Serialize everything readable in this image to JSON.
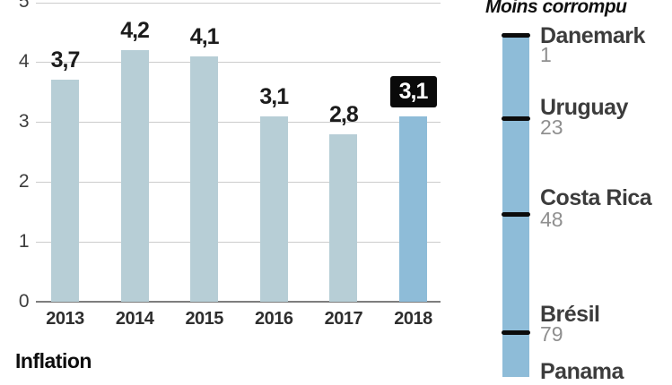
{
  "colors": {
    "bar": "#b7ced6",
    "bar_highlight": "#8ebcd8",
    "highlight_box": "#0a0a0a",
    "grid": "#cccccc",
    "axis_line": "#7e7e7e",
    "scale_bar": "#8ebcd8",
    "scale_tick": "#0c0c0c"
  },
  "chart_data": [
    {
      "type": "bar",
      "title": "Inflation",
      "categories": [
        "2013",
        "2014",
        "2015",
        "2016",
        "2017",
        "2018"
      ],
      "values": [
        3.7,
        4.2,
        4.1,
        3.1,
        2.8,
        3.1
      ],
      "data_labels": [
        "3,7",
        "4,2",
        "4,1",
        "3,1",
        "2,8",
        "3,1"
      ],
      "highlight_index": 5,
      "xlabel": "",
      "ylabel": "",
      "ylim": [
        0,
        5
      ],
      "y_ticks": [
        "0",
        "1",
        "2",
        "3",
        "4",
        "5"
      ],
      "grid": true,
      "legend": "none"
    },
    {
      "type": "scale",
      "title": "Moins corrompu",
      "items": [
        {
          "label": "Danemark",
          "rank": "1"
        },
        {
          "label": "Uruguay",
          "rank": "23"
        },
        {
          "label": "Costa Rica",
          "rank": "48"
        },
        {
          "label": "Brésil",
          "rank": "79"
        },
        {
          "label": "Panama",
          "rank": ""
        }
      ]
    }
  ]
}
